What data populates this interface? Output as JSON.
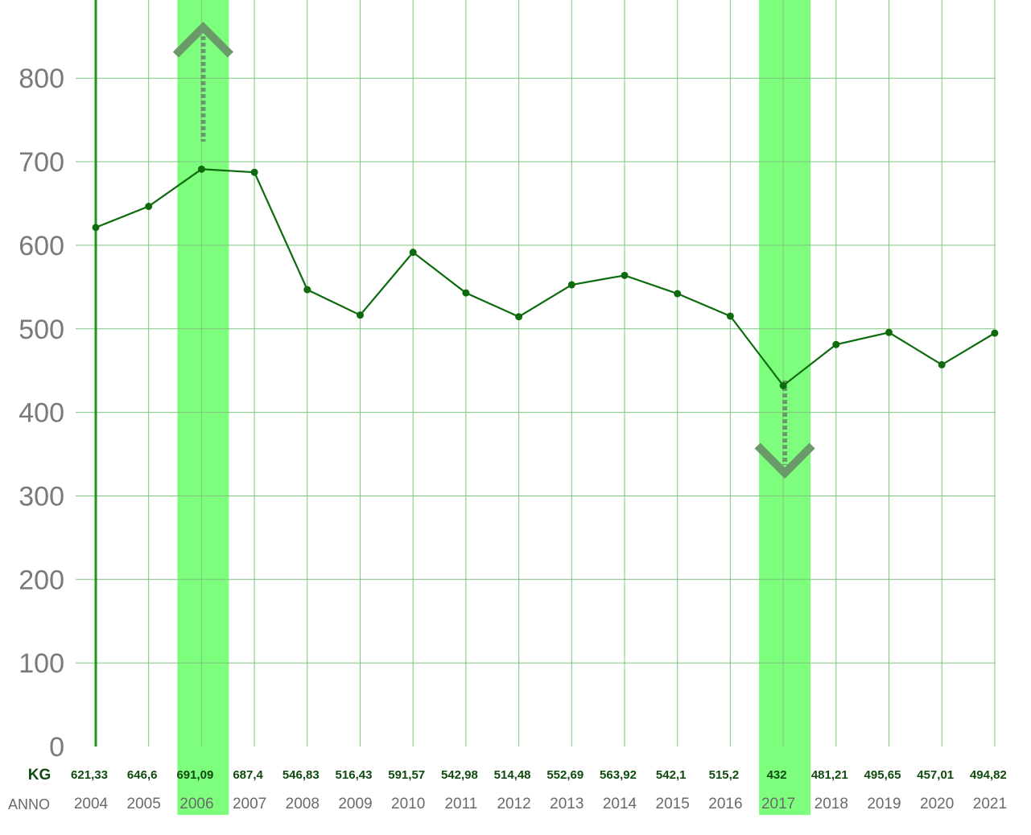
{
  "chart_data": {
    "type": "line",
    "categories": [
      "2004",
      "2005",
      "2006",
      "2007",
      "2008",
      "2009",
      "2010",
      "2011",
      "2012",
      "2013",
      "2014",
      "2015",
      "2016",
      "2017",
      "2018",
      "2019",
      "2020",
      "2021"
    ],
    "values": [
      621.33,
      646.6,
      691.09,
      687.4,
      546.83,
      516.43,
      591.57,
      542.98,
      514.48,
      552.69,
      563.92,
      542.1,
      515.2,
      432,
      481.21,
      495.65,
      457.01,
      494.82
    ],
    "value_labels": [
      "621,33",
      "646,6",
      "691,09",
      "687,4",
      "546,83",
      "516,43",
      "591,57",
      "542,98",
      "514,48",
      "552,69",
      "563,92",
      "542,1",
      "515,2",
      "432",
      "481,21",
      "495,65",
      "457,01",
      "494,82"
    ],
    "row_label_values": "KG",
    "row_label_years": "ANNO",
    "yticks": [
      0,
      100,
      200,
      300,
      400,
      500,
      600,
      700,
      800
    ],
    "ylim": [
      0,
      900
    ],
    "grid": true,
    "highlights": [
      {
        "category": "2006",
        "marker": "up-arrow"
      },
      {
        "category": "2017",
        "marker": "down-arrow"
      }
    ],
    "colors": {
      "line": "#0d6b0d",
      "grid": "#7fc47f",
      "highlight": "#7dff7d",
      "arrow": "#6a9a6a",
      "axis": "#1a9a1a"
    }
  }
}
